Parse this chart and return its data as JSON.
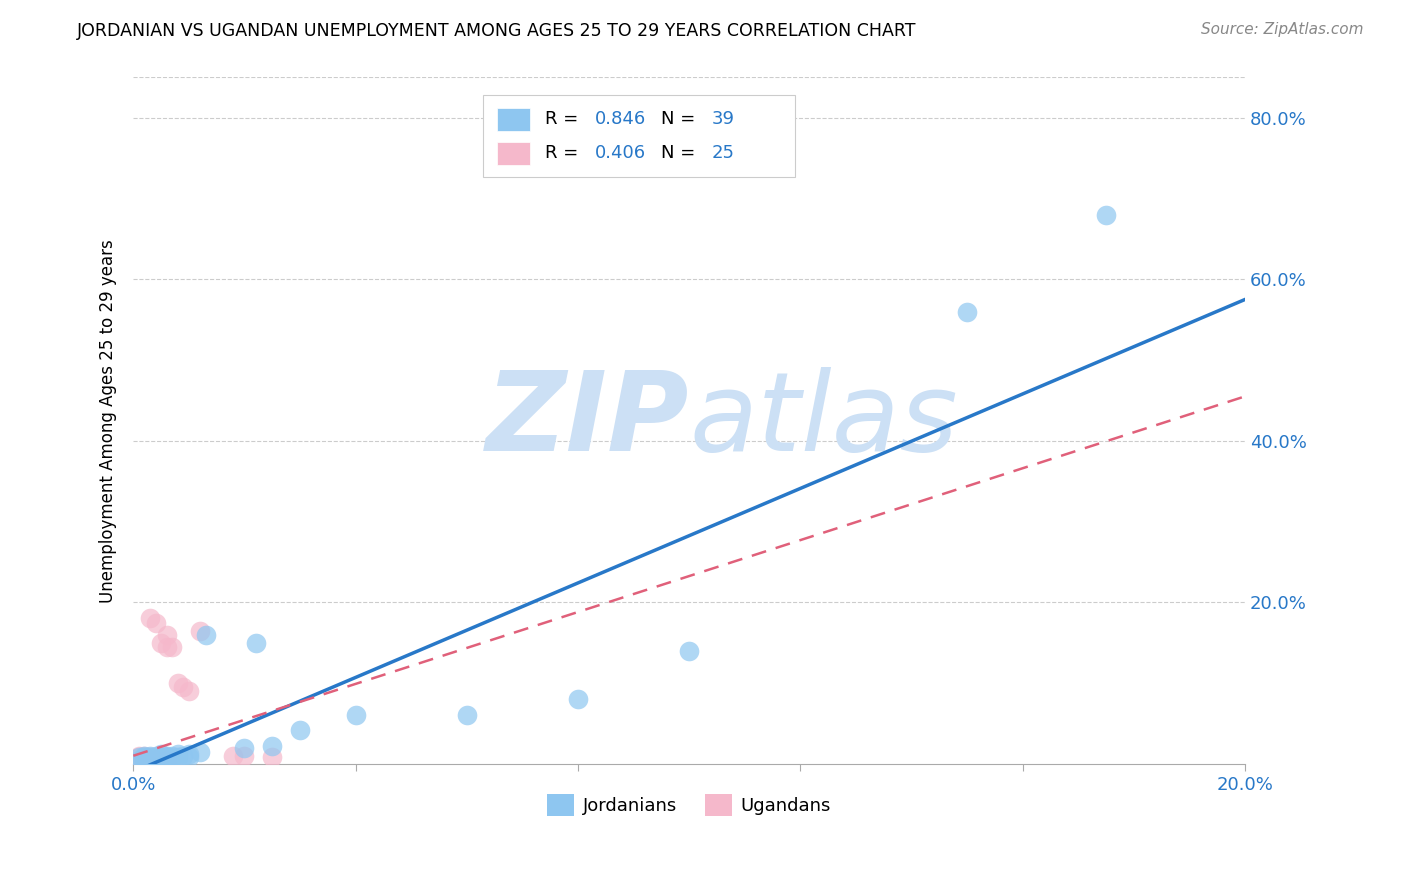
{
  "title": "JORDANIAN VS UGANDAN UNEMPLOYMENT AMONG AGES 25 TO 29 YEARS CORRELATION CHART",
  "source": "Source: ZipAtlas.com",
  "ylabel": "Unemployment Among Ages 25 to 29 years",
  "xlim": [
    0.0,
    0.2
  ],
  "ylim": [
    0.0,
    0.85
  ],
  "jordan_R": 0.846,
  "jordan_N": 39,
  "uganda_R": 0.406,
  "uganda_N": 25,
  "jordan_color": "#8ec6f0",
  "uganda_color": "#f5b8cb",
  "jordan_line_color": "#2878c8",
  "uganda_line_color": "#e0607a",
  "label_color": "#2878c8",
  "background_color": "#ffffff",
  "watermark_zip": "#cce0f5",
  "watermark_atlas": "#cce0f5",
  "grid_color": "#cccccc",
  "jordan_scatter_x": [
    0.001,
    0.001,
    0.002,
    0.002,
    0.002,
    0.003,
    0.003,
    0.003,
    0.003,
    0.004,
    0.004,
    0.004,
    0.005,
    0.005,
    0.005,
    0.005,
    0.005,
    0.006,
    0.006,
    0.006,
    0.007,
    0.007,
    0.008,
    0.008,
    0.009,
    0.01,
    0.01,
    0.012,
    0.013,
    0.02,
    0.022,
    0.025,
    0.03,
    0.04,
    0.06,
    0.08,
    0.1,
    0.15,
    0.175
  ],
  "jordan_scatter_y": [
    0.005,
    0.008,
    0.005,
    0.008,
    0.01,
    0.005,
    0.006,
    0.008,
    0.01,
    0.005,
    0.007,
    0.01,
    0.004,
    0.006,
    0.008,
    0.009,
    0.012,
    0.005,
    0.008,
    0.01,
    0.007,
    0.01,
    0.008,
    0.012,
    0.01,
    0.009,
    0.012,
    0.015,
    0.16,
    0.02,
    0.15,
    0.022,
    0.042,
    0.06,
    0.06,
    0.08,
    0.14,
    0.56,
    0.68
  ],
  "uganda_scatter_x": [
    0.001,
    0.001,
    0.001,
    0.002,
    0.002,
    0.002,
    0.003,
    0.003,
    0.003,
    0.004,
    0.004,
    0.005,
    0.005,
    0.006,
    0.006,
    0.006,
    0.007,
    0.008,
    0.008,
    0.009,
    0.01,
    0.012,
    0.018,
    0.02,
    0.025
  ],
  "uganda_scatter_y": [
    0.005,
    0.008,
    0.01,
    0.005,
    0.008,
    0.01,
    0.005,
    0.008,
    0.18,
    0.005,
    0.175,
    0.008,
    0.15,
    0.005,
    0.145,
    0.16,
    0.145,
    0.1,
    0.008,
    0.095,
    0.09,
    0.165,
    0.01,
    0.01,
    0.008
  ],
  "jordan_line_x0": 0.0,
  "jordan_line_x1": 0.2,
  "jordan_line_y0": -0.01,
  "jordan_line_y1": 0.575,
  "uganda_line_x0": 0.0,
  "uganda_line_x1": 0.2,
  "uganda_line_y0": 0.01,
  "uganda_line_y1": 0.455
}
